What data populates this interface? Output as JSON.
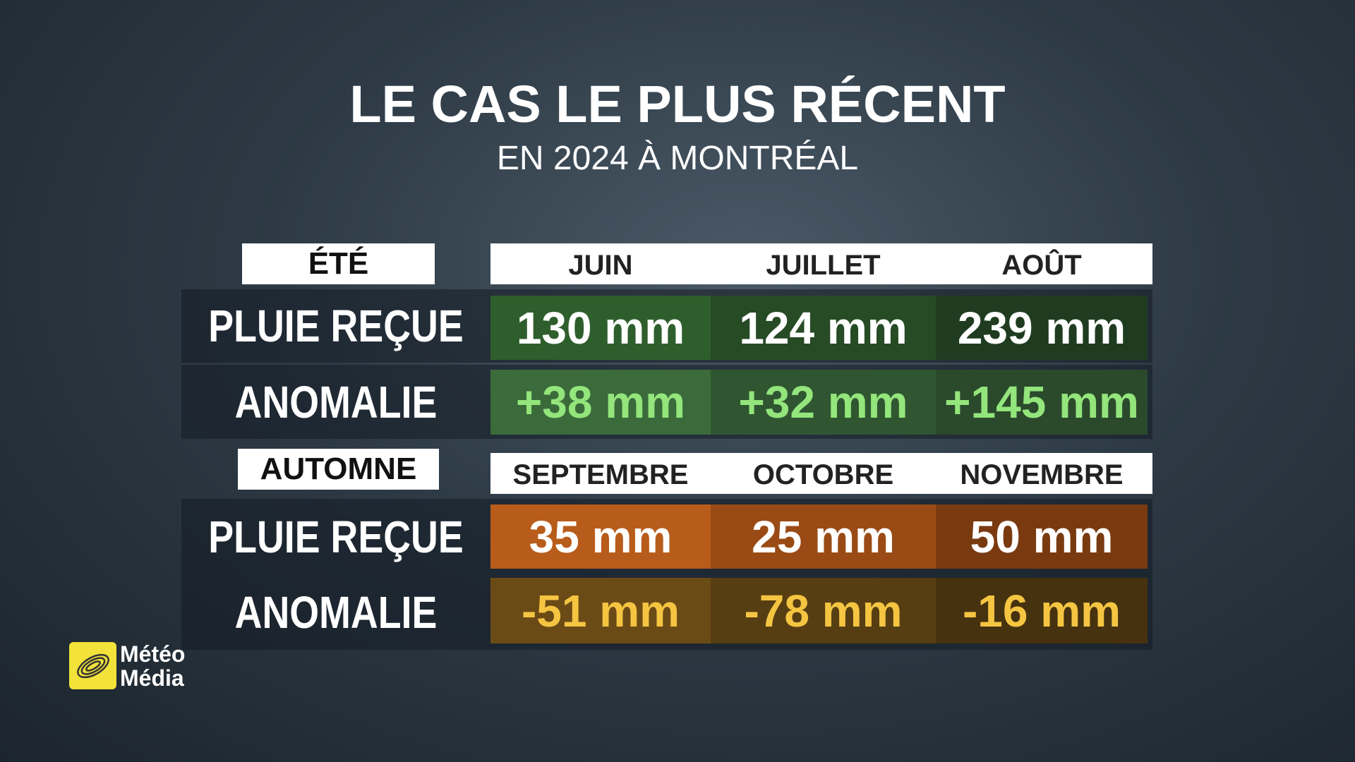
{
  "header": {
    "title": "LE CAS LE PLUS RÉCENT",
    "subtitle": "EN 2024 À MONTRÉAL"
  },
  "sections": [
    {
      "season": "ÉTÉ",
      "months": [
        "JUIN",
        "JUILLET",
        "AOÛT"
      ],
      "rows": [
        {
          "label": "PLUIE REÇUE",
          "cells": [
            "130 mm",
            "124 mm",
            "239 mm"
          ]
        },
        {
          "label": "ANOMALIE",
          "cells": [
            "+38 mm",
            "+32 mm",
            "+145 mm"
          ]
        }
      ]
    },
    {
      "season": "AUTOMNE",
      "months": [
        "SEPTEMBRE",
        "OCTOBRE",
        "NOVEMBRE"
      ],
      "rows": [
        {
          "label": "PLUIE REÇUE",
          "cells": [
            "35 mm",
            "25 mm",
            "50 mm"
          ]
        },
        {
          "label": "ANOMALIE",
          "cells": [
            "-51 mm",
            "-78 mm",
            "-16 mm"
          ]
        }
      ]
    }
  ],
  "logo": {
    "line1": "Météo",
    "line2": "Média"
  }
}
